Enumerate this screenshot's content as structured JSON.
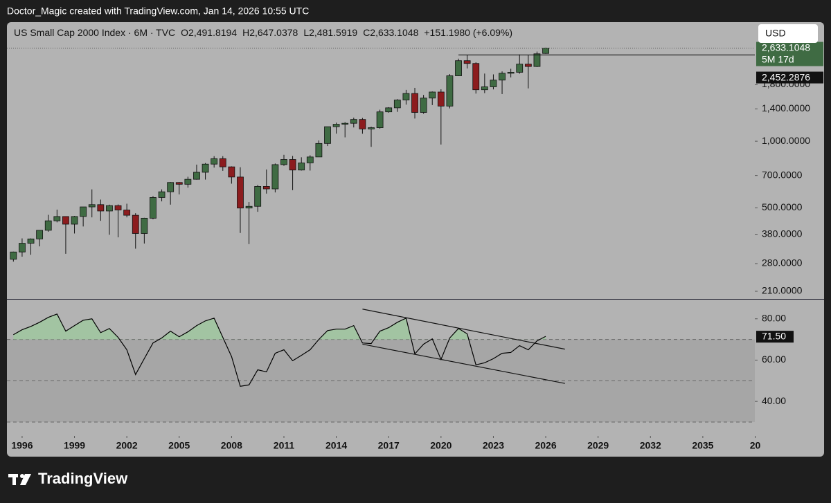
{
  "page_header": "Doctor_Magic created with TradingView.com, Jan 14, 2026 10:55 UTC",
  "footer_brand": "TradingView",
  "chart_data": [
    {
      "type": "candlestick",
      "symbol": "US Small Cap 2000 Index · 6M · TVC",
      "ohlc_labels": [
        "O2,491.8194",
        "H2,647.0378",
        "L2,481.5919",
        "C2,633.1048"
      ],
      "change_label": "+151.1980 (+6.09%)",
      "currency": "USD",
      "x": [
        1995.5,
        1996,
        1996.5,
        1997,
        1997.5,
        1998,
        1998.5,
        1999,
        1999.5,
        2000,
        2000.5,
        2001,
        2001.5,
        2002,
        2002.5,
        2003,
        2003.5,
        2004,
        2004.5,
        2005,
        2005.5,
        2006,
        2006.5,
        2007,
        2007.5,
        2008,
        2008.5,
        2009,
        2009.5,
        2010,
        2010.5,
        2011,
        2011.5,
        2012,
        2012.5,
        2013,
        2013.5,
        2014,
        2014.5,
        2015,
        2015.5,
        2016,
        2016.5,
        2017,
        2017.5,
        2018,
        2018.5,
        2019,
        2019.5,
        2020,
        2020.5,
        2021,
        2021.5,
        2022,
        2022.5,
        2023,
        2023.5,
        2024,
        2024.5,
        2025,
        2025.5,
        2026
      ],
      "open": [
        293,
        316,
        346,
        362,
        396,
        437,
        457,
        422,
        457,
        505,
        517,
        484,
        512,
        489,
        463,
        383,
        449,
        557,
        591,
        651,
        639,
        673,
        724,
        788,
        834,
        766,
        689,
        499,
        508,
        625,
        609,
        784,
        827,
        741,
        798,
        849,
        977,
        1163,
        1193,
        1205,
        1254,
        1136,
        1151,
        1357,
        1415,
        1535,
        1643,
        1349,
        1566,
        1668,
        1441,
        1975,
        2311,
        2245,
        1708,
        1761,
        1888,
        2027,
        2048,
        2230,
        2175,
        2491.8194
      ],
      "high": [
        317,
        364,
        364,
        396,
        465,
        491,
        458,
        460,
        505,
        606,
        545,
        517,
        518,
        522,
        473,
        451,
        565,
        606,
        654,
        654,
        691,
        784,
        797,
        856,
        856,
        770,
        763,
        531,
        635,
        745,
        793,
        868,
        858,
        846,
        864,
        1008,
        1164,
        1213,
        1220,
        1278,
        1274,
        1163,
        1388,
        1425,
        1549,
        1706,
        1742,
        1618,
        1678,
        1716,
        2010,
        2360,
        2459,
        2272,
        2021,
        2004,
        2067,
        2124,
        2466,
        2442,
        2540,
        2647.0378
      ],
      "low": [
        286,
        301,
        307,
        335,
        390,
        430,
        310,
        383,
        412,
        453,
        437,
        378,
        368,
        453,
        327,
        345,
        444,
        535,
        517,
        575,
        617,
        670,
        671,
        760,
        735,
        643,
        385,
        343,
        480,
        580,
        587,
        774,
        601,
        737,
        737,
        848,
        951,
        1082,
        1041,
        1154,
        1081,
        943,
        1139,
        1345,
        1357,
        1463,
        1266,
        1330,
        1456,
        966,
        1407,
        1970,
        2131,
        1641,
        1649,
        1714,
        1633,
        1942,
        2018,
        1732,
        2162,
        2481.5919
      ],
      "close": [
        316,
        346,
        362,
        396,
        437,
        457,
        422,
        457,
        505,
        517,
        484,
        512,
        489,
        463,
        383,
        449,
        557,
        591,
        651,
        639,
        673,
        724,
        788,
        834,
        766,
        689,
        499,
        508,
        625,
        609,
        784,
        827,
        741,
        798,
        849,
        977,
        1163,
        1193,
        1205,
        1254,
        1136,
        1151,
        1357,
        1415,
        1535,
        1643,
        1349,
        1566,
        1668,
        1441,
        1975,
        2311,
        2245,
        1708,
        1761,
        1888,
        2027,
        2048,
        2230,
        2175,
        2482,
        2633.1048
      ],
      "up_color": "#3f6b43",
      "down_color": "#8c1c1e",
      "log_scale": true,
      "ylim": [
        194,
        3450
      ],
      "yticks": [
        {
          "value": 210,
          "label": "210.0000"
        },
        {
          "value": 280,
          "label": "280.0000"
        },
        {
          "value": 380,
          "label": "380.0000"
        },
        {
          "value": 500,
          "label": "500.0000"
        },
        {
          "value": 700,
          "label": "700.0000"
        },
        {
          "value": 1000,
          "label": "1,000.0000"
        },
        {
          "value": 1400,
          "label": "1,400.0000"
        },
        {
          "value": 1800,
          "label": "1,800.0000"
        }
      ],
      "xlim": [
        1995.13,
        2037.98
      ],
      "xticks": [
        1996,
        1999,
        2002,
        2005,
        2008,
        2011,
        2014,
        2017,
        2020,
        2023,
        2026,
        2029,
        2032,
        2035,
        {
          "value": 2038,
          "label": "20"
        }
      ],
      "last_price_label": "2,633.1048",
      "countdown": "5M 17d",
      "hline": {
        "value": 2452.2876,
        "label": "2,452.2876",
        "x_start": 2021
      }
    },
    {
      "type": "line",
      "x": [
        1995.5,
        1996,
        1996.5,
        1997,
        1997.5,
        1998,
        1998.5,
        1999,
        1999.5,
        2000,
        2000.5,
        2001,
        2001.5,
        2002,
        2002.5,
        2003,
        2003.5,
        2004,
        2004.5,
        2005,
        2005.5,
        2006,
        2006.5,
        2007,
        2007.5,
        2008,
        2008.5,
        2009,
        2009.5,
        2010,
        2010.5,
        2011,
        2011.5,
        2012,
        2012.5,
        2013,
        2013.5,
        2014,
        2014.5,
        2015,
        2015.5,
        2016,
        2016.5,
        2017,
        2017.5,
        2018,
        2018.5,
        2019,
        2019.5,
        2020,
        2020.5,
        2021,
        2021.5,
        2022,
        2022.5,
        2023,
        2023.5,
        2024,
        2024.5,
        2025,
        2025.5,
        2026
      ],
      "values": [
        72.3,
        74.7,
        76.3,
        78.3,
        80.7,
        82.3,
        74,
        76.7,
        79.3,
        80,
        73.3,
        75.3,
        71,
        65,
        53,
        60.7,
        68.3,
        70.7,
        74,
        71.3,
        73.7,
        76.7,
        79,
        80.3,
        71,
        61.7,
        47.3,
        48,
        55.3,
        54.3,
        63.3,
        65,
        59.7,
        62.3,
        65,
        70,
        74.3,
        75,
        75,
        76.7,
        68.3,
        68,
        74,
        75.7,
        78.3,
        80.3,
        63,
        67.7,
        70.3,
        60.3,
        70.7,
        75.3,
        72.7,
        57.7,
        58.7,
        60.7,
        63.3,
        63.7,
        67,
        65,
        69.3,
        71.5
      ],
      "last_value_label": "71.50",
      "color": "#000000",
      "fill_color": "#9fc79f",
      "band_color": "#a6a6a6",
      "ylim": [
        23.3,
        89.3
      ],
      "yticks": [
        {
          "value": 40,
          "label": "40.00"
        },
        {
          "value": 60,
          "label": "60.00"
        },
        {
          "value": 80,
          "label": "80.00"
        }
      ],
      "levels": [
        30,
        50,
        70
      ],
      "trendlines": [
        {
          "x": [
            2015.5,
            2027.1
          ],
          "y": [
            84.7,
            65.3
          ]
        },
        {
          "x": [
            2015.5,
            2027.1
          ],
          "y": [
            67.7,
            48.7
          ]
        }
      ]
    }
  ]
}
